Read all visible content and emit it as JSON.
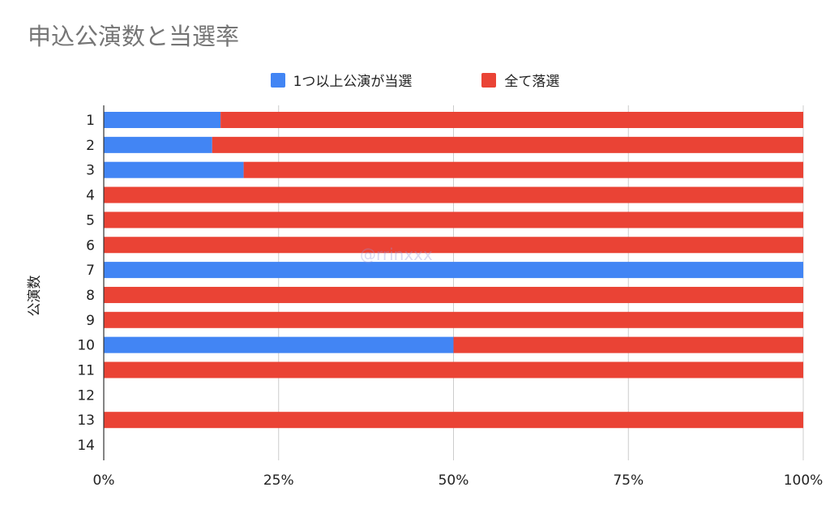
{
  "chart_data": {
    "type": "bar",
    "orientation": "horizontal",
    "stacked": "percent",
    "title": "申込公演数と当選率",
    "ylabel": "公演数",
    "xlabel": "",
    "categories": [
      "1",
      "2",
      "3",
      "4",
      "5",
      "6",
      "7",
      "8",
      "9",
      "10",
      "11",
      "12",
      "13",
      "14"
    ],
    "series": [
      {
        "name": "1つ以上公演が当選",
        "color": "#4285f4",
        "values": [
          16.7,
          15.5,
          20,
          0,
          0,
          0,
          100,
          0,
          0,
          50,
          0,
          null,
          0,
          null
        ]
      },
      {
        "name": "全て落選",
        "color": "#ea4335",
        "values": [
          83.3,
          84.5,
          80,
          100,
          100,
          100,
          0,
          100,
          100,
          50,
          100,
          null,
          100,
          null
        ]
      }
    ],
    "xlim": [
      0,
      100
    ],
    "x_ticks": [
      "0%",
      "25%",
      "50%",
      "75%",
      "100%"
    ],
    "grid": true,
    "legend_position": "top-center"
  },
  "watermark": "@rrinxxx"
}
